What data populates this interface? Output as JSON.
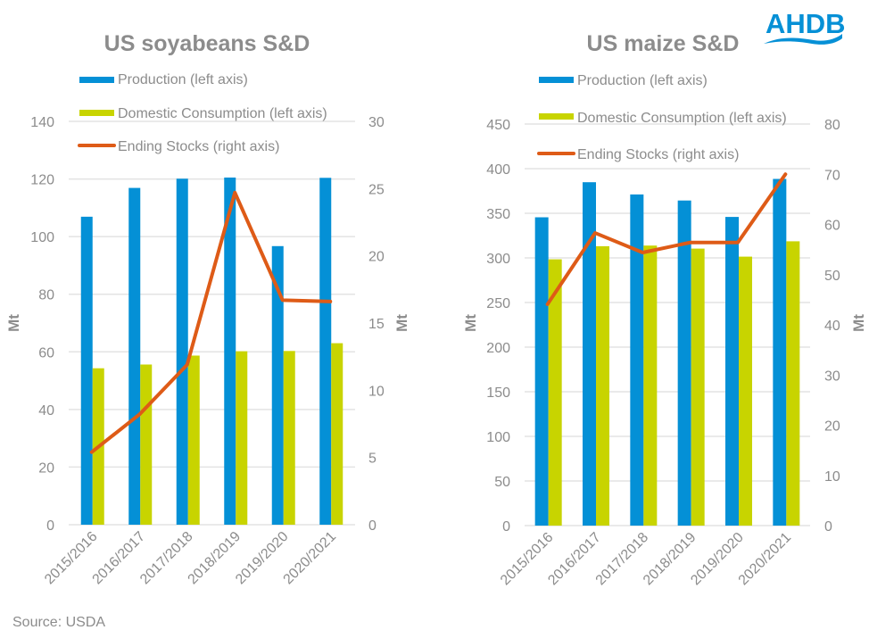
{
  "colors": {
    "production": "#0490d6",
    "consumption": "#c8d400",
    "stocks": "#de5b17",
    "grid": "#e3e3e3",
    "text": "#8c8c8c",
    "logo": "#0690d6"
  },
  "logo": "AHDB",
  "source": "Source: USDA",
  "chart_data": [
    {
      "type": "bar",
      "title": "US soyabeans S&D",
      "categories": [
        "2015/2016",
        "2016/2017",
        "2017/2018",
        "2018/2019",
        "2019/2020",
        "2020/2021"
      ],
      "ylabel": "Mt",
      "y2label": "Mt",
      "ylim": [
        0,
        140
      ],
      "y2lim": [
        0,
        30
      ],
      "yticks": [
        "0",
        "20",
        "40",
        "60",
        "80",
        "100",
        "120",
        "140"
      ],
      "y2ticks": [
        "0",
        "5",
        "10",
        "15",
        "20",
        "25",
        "30"
      ],
      "grid": true,
      "legend_position": "top",
      "series": [
        {
          "name": "Production (left axis)",
          "type": "bar",
          "axis": "left",
          "values": [
            106.9,
            116.9,
            120.1,
            120.5,
            96.7,
            120.4
          ]
        },
        {
          "name": "Domestic Consumption (left axis)",
          "type": "bar",
          "axis": "left",
          "values": [
            54.3,
            55.6,
            58.7,
            60.2,
            60.3,
            63.0
          ]
        },
        {
          "name": "Ending Stocks (right axis)",
          "type": "line",
          "axis": "right",
          "values": [
            5.4,
            8.2,
            11.9,
            24.7,
            16.7,
            16.6
          ]
        }
      ]
    },
    {
      "type": "bar",
      "title": "US maize S&D",
      "categories": [
        "2015/2016",
        "2016/2017",
        "2017/2018",
        "2018/2019",
        "2019/2020",
        "2020/2021"
      ],
      "ylabel": "Mt",
      "y2label": "Mt",
      "ylim": [
        0,
        450
      ],
      "y2lim": [
        0,
        80
      ],
      "yticks": [
        "0",
        "50",
        "100",
        "150",
        "200",
        "250",
        "300",
        "350",
        "400",
        "450"
      ],
      "y2ticks": [
        "0",
        "10",
        "20",
        "30",
        "40",
        "50",
        "60",
        "70",
        "80"
      ],
      "grid": true,
      "legend_position": "top",
      "series": [
        {
          "name": "Production (left axis)",
          "type": "bar",
          "axis": "left",
          "values": [
            345.5,
            384.8,
            371.1,
            364.3,
            345.9,
            388.5
          ]
        },
        {
          "name": "Domestic Consumption (left axis)",
          "type": "bar",
          "axis": "left",
          "values": [
            298.4,
            313.1,
            313.8,
            310.4,
            301.4,
            318.6
          ]
        },
        {
          "name": "Ending Stocks (right axis)",
          "type": "line",
          "axis": "right",
          "values": [
            44.1,
            58.3,
            54.4,
            56.4,
            56.4,
            70.0
          ]
        }
      ]
    }
  ]
}
